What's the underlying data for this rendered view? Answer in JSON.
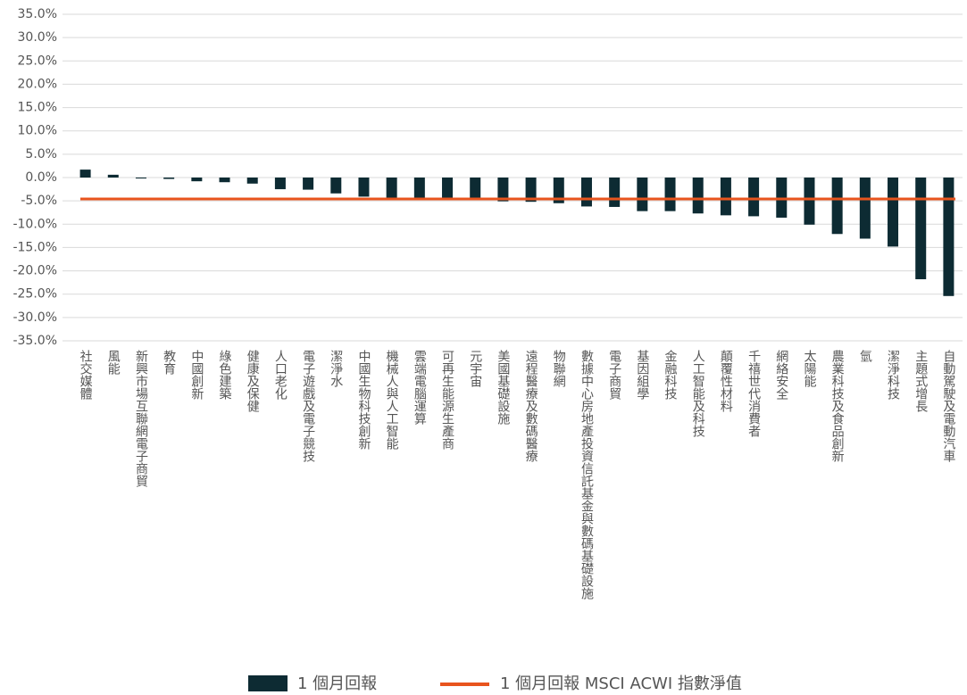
{
  "chart_data": {
    "type": "bar",
    "categories": [
      "社交媒體",
      "風能",
      "新興市場互聯網電子商貿",
      "教育",
      "中國創新",
      "綠色建築",
      "健康及保健",
      "人口老化",
      "電子遊戲及電子競技",
      "潔淨水",
      "中國生物科技創新",
      "機械人與人工智能",
      "雲端電腦運算",
      "可再生能源生產商",
      "元宇宙",
      "美國基礎設施",
      "遠程醫療及數碼醫療",
      "物聯網",
      "數據中心房地產投資信託基金與數碼基礎設施",
      "電子商貿",
      "基因組學",
      "金融科技",
      "人工智能及科技",
      "顛覆性材料",
      "千禧世代消費者",
      "網絡安全",
      "太陽能",
      "農業科技及食品創新",
      "氫",
      "潔淨科技",
      "主題式增長",
      "自動駕駛及電動汽車"
    ],
    "series": [
      {
        "name": "1 個月回報",
        "color": "#0d2b33",
        "values": [
          1.7,
          0.6,
          -0.2,
          -0.3,
          -0.8,
          -1.0,
          -1.3,
          -2.5,
          -2.6,
          -3.4,
          -4.1,
          -4.4,
          -4.5,
          -4.5,
          -4.6,
          -5.1,
          -5.2,
          -5.5,
          -6.2,
          -6.3,
          -7.2,
          -7.2,
          -7.7,
          -8.1,
          -8.3,
          -8.6,
          -10.1,
          -12.1,
          -13.1,
          -14.8,
          -21.8,
          -25.4
        ]
      }
    ],
    "reference_line": {
      "name": "1 個月回報 MSCI ACWI 指數淨值",
      "color": "#e8541d",
      "value": -4.6
    },
    "ylim": [
      -35,
      35
    ],
    "yticks": [
      {
        "value": 35,
        "label": "35.0%"
      },
      {
        "value": 30,
        "label": "30.0%"
      },
      {
        "value": 25,
        "label": "25.0%"
      },
      {
        "value": 20,
        "label": "20.0%"
      },
      {
        "value": 15,
        "label": "15.0%"
      },
      {
        "value": 10,
        "label": "10.0%"
      },
      {
        "value": 5,
        "label": "5.0%"
      },
      {
        "value": 0,
        "label": "0.0%"
      },
      {
        "value": -5,
        "label": "-5.0%"
      },
      {
        "value": -10,
        "label": "-10.0%"
      },
      {
        "value": -15,
        "label": "-15.0%"
      },
      {
        "value": -20,
        "label": "-20.0%"
      },
      {
        "value": -25,
        "label": "-25.0%"
      },
      {
        "value": -30,
        "label": "-30.0%"
      },
      {
        "value": -35,
        "label": "-35.0%"
      }
    ],
    "grid": true
  }
}
